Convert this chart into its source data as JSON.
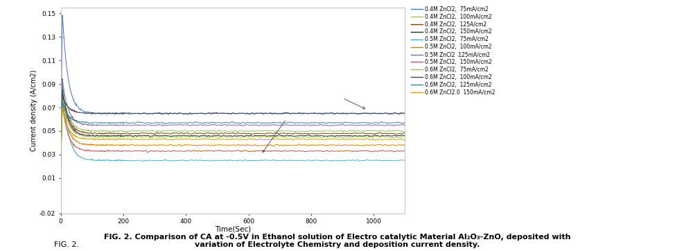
{
  "xlabel": "Time(Sec)",
  "ylabel": "Current density (A/cm2)",
  "xlim": [
    0,
    1100
  ],
  "ylim": [
    -0.02,
    0.155
  ],
  "yticks": [
    -0.02,
    0.01,
    0.03,
    0.05,
    0.07,
    0.09,
    0.11,
    0.13,
    0.15
  ],
  "xticks": [
    0,
    200,
    400,
    600,
    800,
    1000
  ],
  "caption_pre": "FIG. 2. ",
  "caption_bold": "Comparison of CA at -0.5V in Ethanol solution of Electro catalytic Material Al",
  "caption_sub1": "2",
  "caption_mid1": "O",
  "caption_sub2": "3",
  "caption_mid2": "-ZnO, deposited with\nvariation of Electrolyte Chemistry and deposition current density.",
  "series": [
    {
      "label": "0.4M ZnCl2,  75mA/cm2",
      "color": "#4472c4",
      "final": 0.065,
      "peak": 0.15,
      "tau": 18
    },
    {
      "label": "0.4M ZnCl2,  100mA/cm2",
      "color": "#9bbb59",
      "final": 0.05,
      "peak": 0.09,
      "tau": 18
    },
    {
      "label": "0.4M ZnCl2,  125A/cm2",
      "color": "#7b3f00",
      "final": 0.048,
      "peak": 0.088,
      "tau": 18
    },
    {
      "label": "0.4M ZnCl2,  150mA/cm2",
      "color": "#262626",
      "final": 0.046,
      "peak": 0.085,
      "tau": 18
    },
    {
      "label": "0.5M ZnCl2,  75mA/cm2",
      "color": "#4bacc6",
      "final": 0.025,
      "peak": 0.095,
      "tau": 18
    },
    {
      "label": "0.5M ZnCl2,  100mA/cm2",
      "color": "#c8810a",
      "final": 0.038,
      "peak": 0.078,
      "tau": 18
    },
    {
      "label": "0.5M ZnCl2  125mA/cm2",
      "color": "#8064a2",
      "final": 0.055,
      "peak": 0.095,
      "tau": 18
    },
    {
      "label": "0.5M ZnCl2,  150mA/cm2",
      "color": "#c0504d",
      "final": 0.033,
      "peak": 0.073,
      "tau": 18
    },
    {
      "label": "0.6M ZnCl2,  75mA/cm2",
      "color": "#9bbb59",
      "final": 0.045,
      "peak": 0.08,
      "tau": 18
    },
    {
      "label": "0.6M ZnCl2,  100mA/cm2",
      "color": "#404040",
      "final": 0.065,
      "peak": 0.08,
      "tau": 18
    },
    {
      "label": "0.6M ZnCl2,  125mA/cm2",
      "color": "#31849b",
      "final": 0.057,
      "peak": 0.075,
      "tau": 18
    },
    {
      "label": "0.6M ZnCl2.0  150mA/cm2",
      "color": "#c8a000",
      "final": 0.043,
      "peak": 0.07,
      "tau": 18
    }
  ],
  "background_color": "#ffffff",
  "figsize": [
    9.74,
    3.62
  ],
  "dpi": 100
}
